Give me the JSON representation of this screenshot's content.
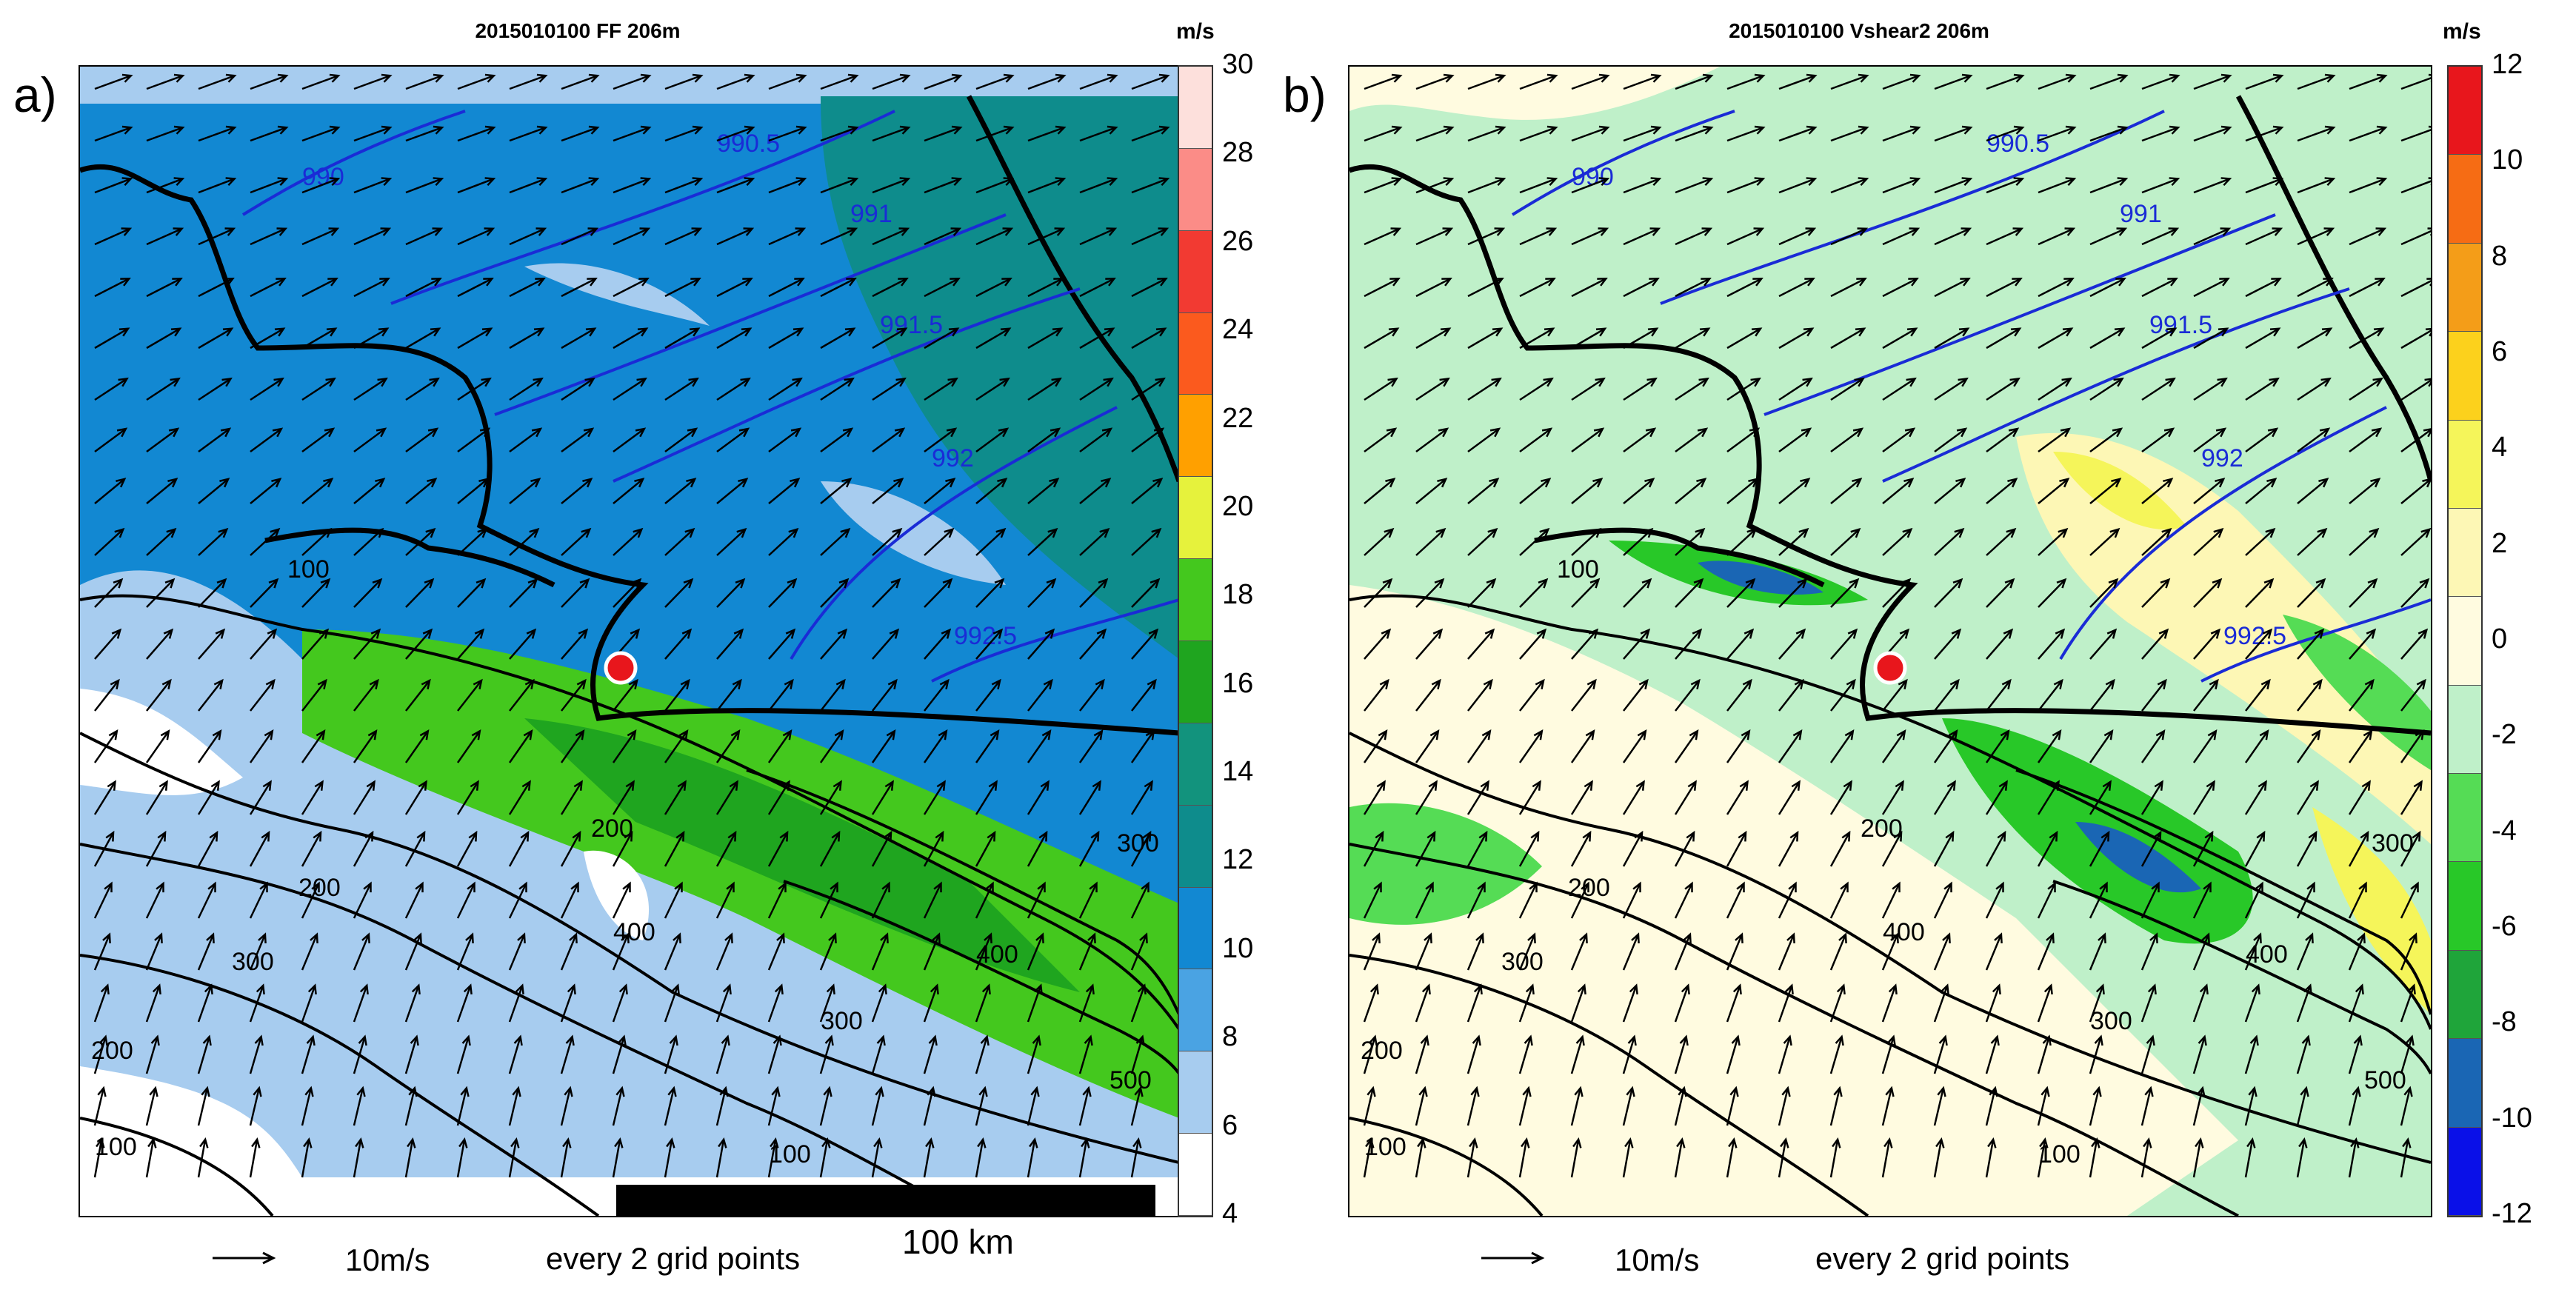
{
  "panels": [
    {
      "letter": "a)",
      "title": "2015010100 FF 206m",
      "unit": "m/s",
      "colorbar": {
        "ticks": [
          "30",
          "28",
          "26",
          "24",
          "22",
          "20",
          "18",
          "16",
          "14",
          "12",
          "10",
          "8",
          "6",
          "4"
        ],
        "colors": [
          "#fde0dc",
          "#fb8c87",
          "#f23a32",
          "#fb5a1e",
          "#ffa000",
          "#e6f23c",
          "#44c81e",
          "#1fa51f",
          "#12937d",
          "#0e8c8c",
          "#1288d2",
          "#4aa3e3",
          "#a7ccef",
          "#ffffff"
        ]
      },
      "contour_labels": [
        "990",
        "990.5",
        "991",
        "991.5",
        "992",
        "992.5",
        "100",
        "200",
        "200",
        "300",
        "300",
        "400",
        "400",
        "300",
        "500",
        "100",
        "200",
        "100"
      ],
      "footer": {
        "reference_vector": "10m/s",
        "note": "every 2 grid points"
      },
      "scale_bar": "100 km"
    },
    {
      "letter": "b)",
      "title": "2015010100 Vshear2 206m",
      "unit": "m/s",
      "colorbar": {
        "ticks": [
          "12",
          "10",
          "8",
          "6",
          "4",
          "2",
          "0",
          "-2",
          "-4",
          "-6",
          "-8",
          "-10",
          "-12"
        ],
        "colors": [
          "#e8161c",
          "#f66c14",
          "#f49d18",
          "#fcd11c",
          "#f5f55a",
          "#fdf7b5",
          "#fffbe0",
          "#bff0c9",
          "#55dc55",
          "#28c828",
          "#1fa53a",
          "#1a66b4",
          "#0a10e8"
        ]
      },
      "contour_labels": [
        "990",
        "990.5",
        "991",
        "991.5",
        "992",
        "992.5",
        "100",
        "200",
        "200",
        "300",
        "300",
        "400",
        "400",
        "300",
        "500",
        "100",
        "200",
        "100"
      ],
      "footer": {
        "reference_vector": "10m/s",
        "note": "every 2 grid points"
      }
    }
  ],
  "colors": {
    "isobar": "#1a2bd6",
    "terrain": "#000000",
    "site_marker": "#e8161c"
  }
}
